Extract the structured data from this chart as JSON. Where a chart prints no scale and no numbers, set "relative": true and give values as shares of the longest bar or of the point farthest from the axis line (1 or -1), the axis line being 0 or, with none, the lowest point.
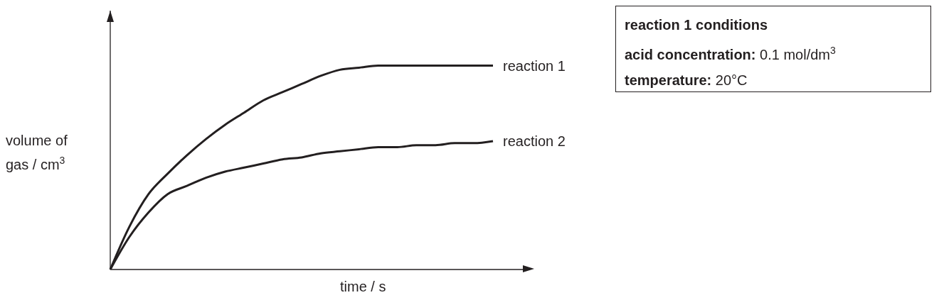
{
  "chart_data": {
    "type": "line",
    "relative": true,
    "xlabel": "time / s",
    "ylabel": "volume of gas / cm$^{3}$",
    "legend": false,
    "grid": false,
    "categories": [
      null,
      null,
      null,
      null,
      null,
      null,
      null,
      null,
      null,
      null,
      null,
      null,
      null,
      null,
      null,
      null,
      null,
      null,
      null,
      null,
      null
    ],
    "series": [
      {
        "name": "reaction 1",
        "color": "#231f20",
        "values": [
          0,
          0.21,
          0.37,
          0.47,
          0.56,
          0.64,
          0.71,
          0.77,
          0.83,
          0.87,
          0.91,
          0.95,
          0.98,
          0.99,
          1,
          1,
          1,
          1,
          1,
          1,
          1
        ]
      },
      {
        "name": "reaction 2",
        "color": "#231f20",
        "values": [
          0,
          0.16,
          0.28,
          0.37,
          0.41,
          0.45,
          0.48,
          0.5,
          0.52,
          0.54,
          0.55,
          0.57,
          0.58,
          0.59,
          0.6,
          0.6,
          0.61,
          0.61,
          0.62,
          0.62,
          0.63
        ]
      }
    ],
    "annotations": [
      "reaction 1 conditions",
      "acid concentration: 0.1 mol/dm$^{3}$",
      "temperature: 20°C"
    ]
  }
}
